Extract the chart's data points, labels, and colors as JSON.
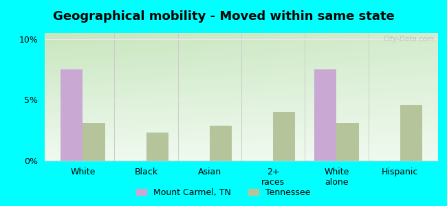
{
  "title": "Geographical mobility - Moved within same state",
  "categories": [
    "White",
    "Black",
    "Asian",
    "2+\nraces",
    "White\nalone",
    "Hispanic"
  ],
  "mount_carmel_values": [
    7.5,
    0,
    0,
    0,
    7.5,
    0
  ],
  "tennessee_values": [
    3.1,
    2.3,
    2.9,
    4.0,
    3.1,
    4.6
  ],
  "bar_color_mc": "#c9a8d4",
  "bar_color_tn": "#b5c49a",
  "ylim": [
    0,
    10.5
  ],
  "yticks": [
    0,
    5,
    10
  ],
  "ytick_labels": [
    "0%",
    "5%",
    "10%"
  ],
  "legend_mc": "Mount Carmel, TN",
  "legend_tn": "Tennessee",
  "bg_top_left": "#c8e8c0",
  "bg_top_right": "#d8eed8",
  "bg_bottom": "#f0faf0",
  "outer_background": "#00ffff",
  "bar_width": 0.35,
  "watermark": "City-Data.com",
  "grid_color": "#e8e8e8",
  "spine_color": "#cccccc",
  "title_fontsize": 13,
  "tick_fontsize": 9,
  "legend_fontsize": 9
}
